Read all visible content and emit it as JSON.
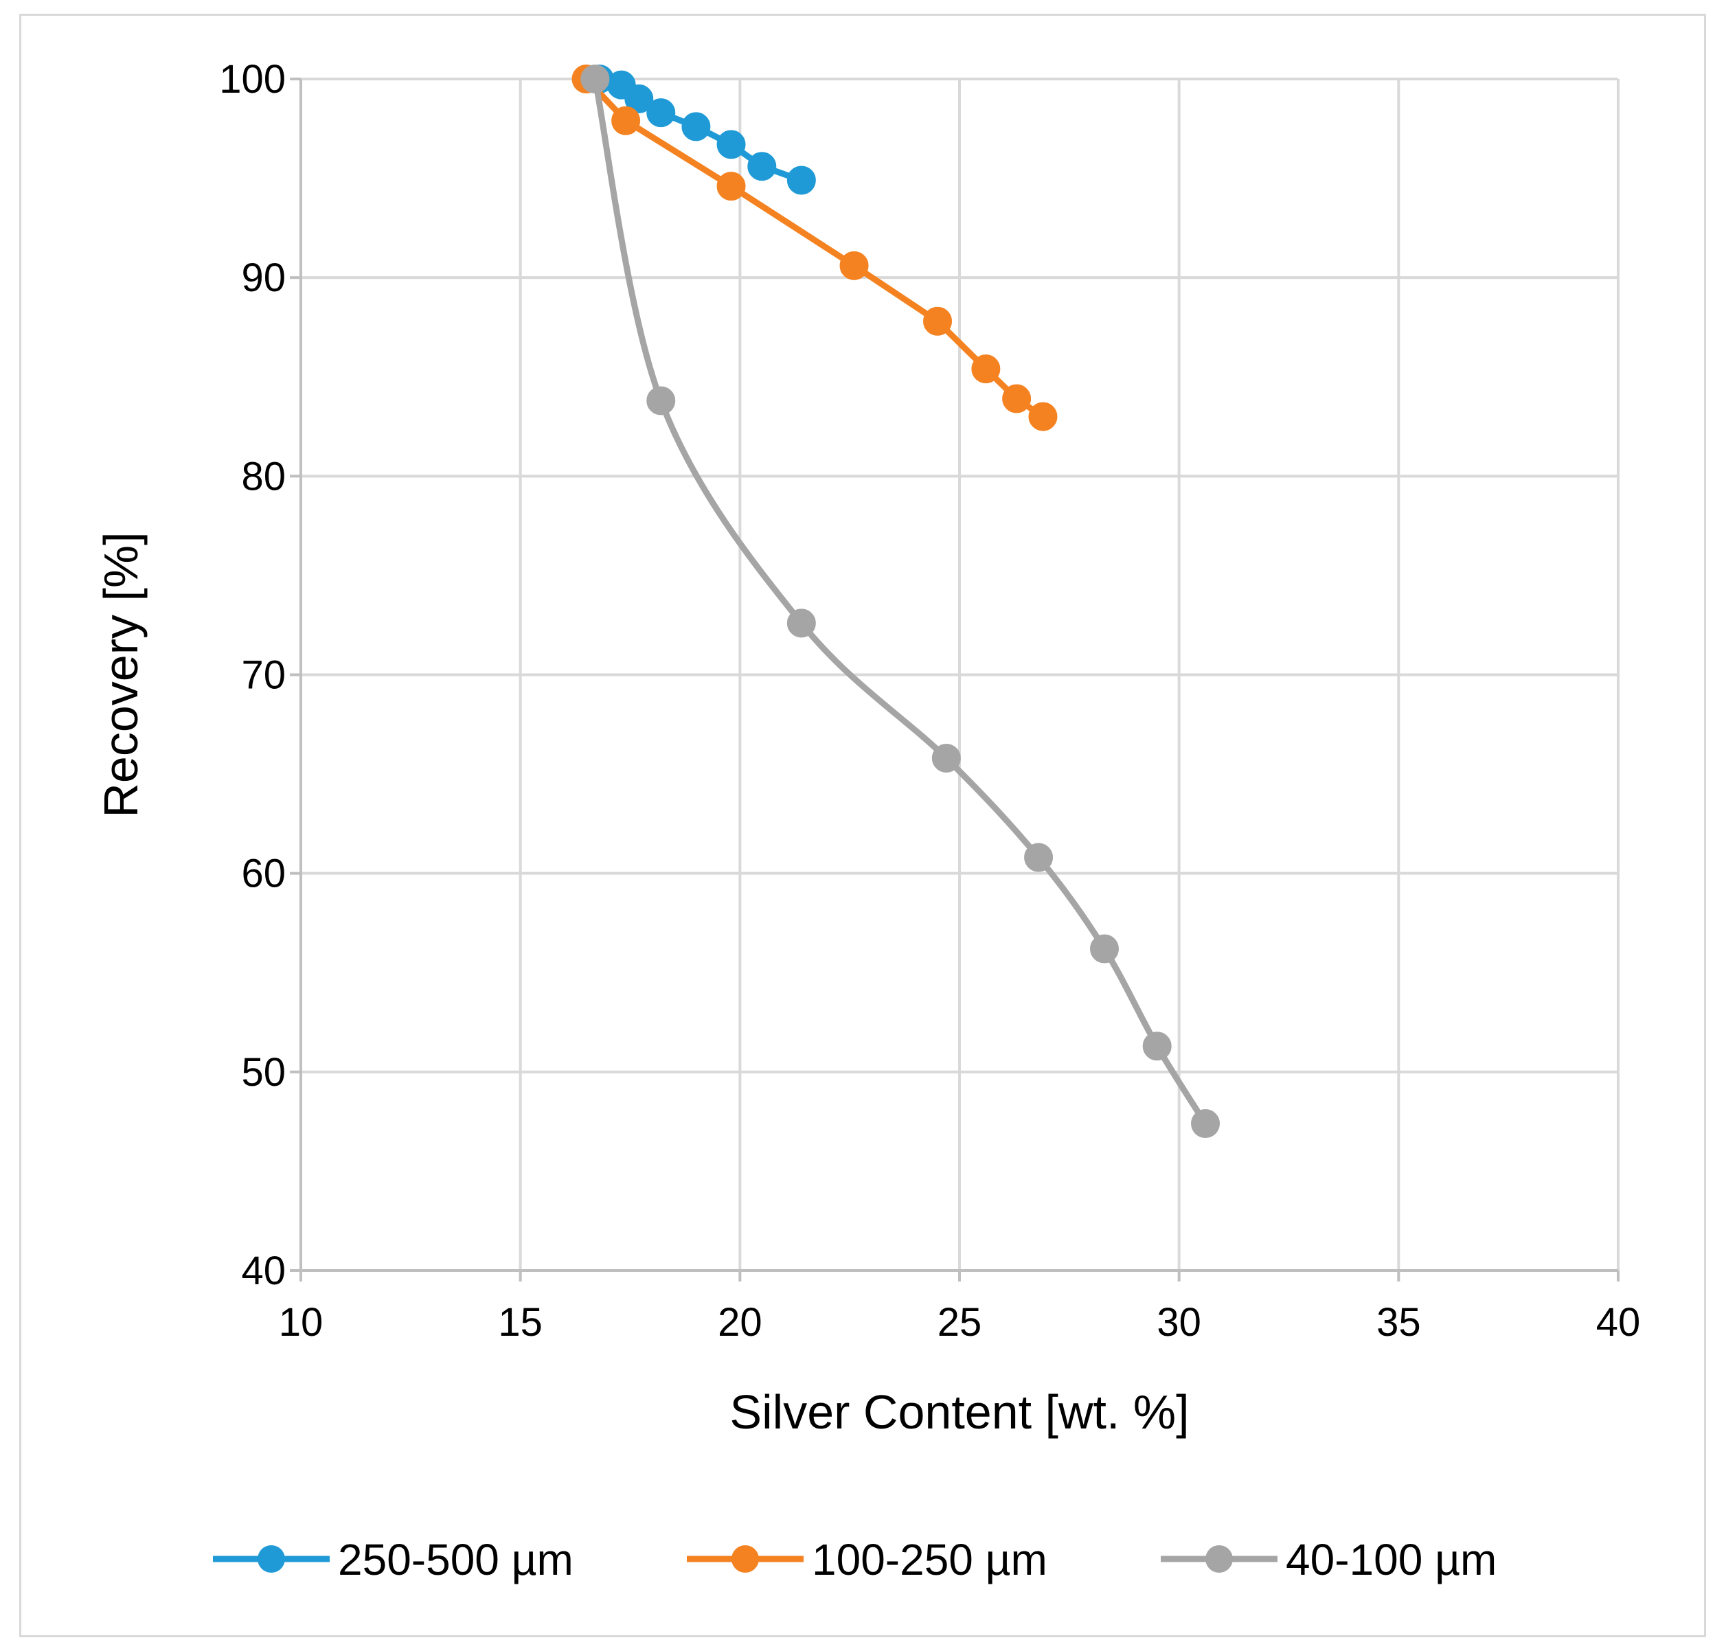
{
  "chart_data": {
    "type": "scatter",
    "title": "",
    "xlabel": "Silver Content [wt. %]",
    "ylabel": "Recovery [%]",
    "xlim": [
      10,
      40
    ],
    "ylim": [
      40,
      100
    ],
    "xticks": [
      10,
      15,
      20,
      25,
      30,
      35,
      40
    ],
    "yticks": [
      40,
      50,
      60,
      70,
      80,
      90,
      100
    ],
    "grid": true,
    "legend_position": "bottom",
    "series": [
      {
        "name": "250-500 µm",
        "color": "#1f9ad6",
        "smooth": false,
        "x": [
          16.8,
          17.3,
          17.7,
          18.2,
          19.0,
          19.8,
          20.5,
          21.4
        ],
        "y": [
          100,
          99.7,
          99.0,
          98.3,
          97.6,
          96.7,
          95.6,
          94.9
        ]
      },
      {
        "name": "100-250 µm",
        "color": "#f58220",
        "smooth": false,
        "x": [
          16.5,
          17.4,
          19.8,
          22.6,
          24.5,
          25.6,
          26.3,
          26.9
        ],
        "y": [
          100,
          97.9,
          94.6,
          90.6,
          87.8,
          85.4,
          83.9,
          83.0
        ]
      },
      {
        "name": "40-100 µm",
        "color": "#a5a5a5",
        "smooth": true,
        "x": [
          16.7,
          18.2,
          21.4,
          24.7,
          26.8,
          28.3,
          29.5,
          30.6
        ],
        "y": [
          100,
          83.8,
          72.6,
          65.8,
          60.8,
          56.2,
          51.3,
          47.4
        ]
      }
    ]
  }
}
